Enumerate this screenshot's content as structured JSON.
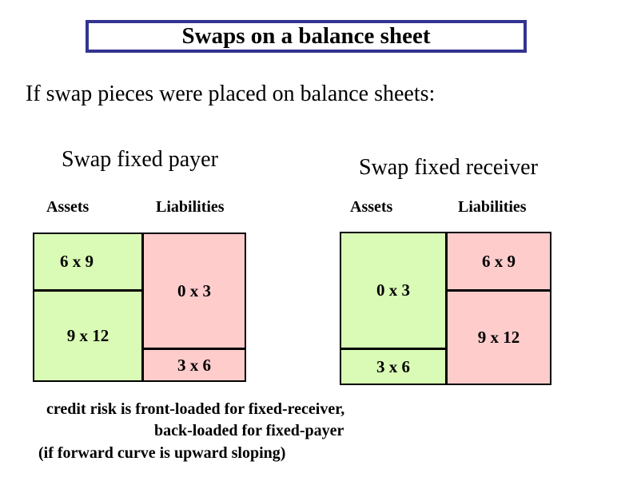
{
  "title": "Swaps on a balance sheet",
  "subtitle": "If swap pieces were placed on balance sheets:",
  "colors": {
    "accent_border": "#333391",
    "asset_green": "#d9fbb5",
    "liability_pink": "#ffcccc"
  },
  "panels": [
    {
      "heading": "Swap fixed payer",
      "assets_label": "Assets",
      "liabilities_label": "Liabilities",
      "asset_cells": [
        "6 x 9",
        "9 x 12"
      ],
      "liability_cells": [
        "0 x 3",
        "3 x 6"
      ]
    },
    {
      "heading": "Swap fixed receiver",
      "assets_label": "Assets",
      "liabilities_label": "Liabilities",
      "asset_cells": [
        "0 x 3",
        "3 x 6"
      ],
      "liability_cells": [
        "6 x 9",
        "9 x 12"
      ]
    }
  ],
  "footer": {
    "lines": [
      "credit risk is front-loaded for fixed-receiver,",
      "back-loaded for fixed-payer",
      "(if forward curve is upward sloping)"
    ]
  }
}
